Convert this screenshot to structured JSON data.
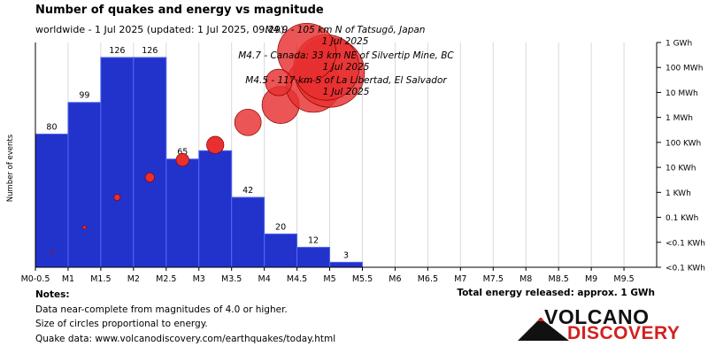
{
  "chart_data": {
    "type": "bar",
    "title": "Number of quakes and energy vs magnitude",
    "subtitle": "worldwide -  1 Jul 2025 (updated: 1 Jul 2025, 09:29)",
    "ylabel": "Number of events",
    "x_tick_labels": [
      "M0-0.5",
      "M1",
      "M1.5",
      "M2",
      "M2.5",
      "M3",
      "M3.5",
      "M4",
      "M4.5",
      "M5",
      "M5.5",
      "M6",
      "M6.5",
      "M7",
      "M7.5",
      "M8",
      "M8.5",
      "M9",
      "M9.5"
    ],
    "bins": [
      {
        "from": 0.0,
        "to": 0.5,
        "count": 80
      },
      {
        "from": 0.5,
        "to": 1.0,
        "count": 99
      },
      {
        "from": 1.0,
        "to": 1.5,
        "count": 126
      },
      {
        "from": 1.5,
        "to": 2.0,
        "count": 126
      },
      {
        "from": 2.0,
        "to": 2.5,
        "count": 65
      },
      {
        "from": 2.5,
        "to": 3.0,
        "count": 70
      },
      {
        "from": 3.0,
        "to": 3.5,
        "count": 42
      },
      {
        "from": 3.5,
        "to": 4.0,
        "count": 20
      },
      {
        "from": 4.0,
        "to": 4.5,
        "count": 12
      },
      {
        "from": 4.5,
        "to": 5.0,
        "count": 3
      }
    ],
    "ylim": [
      0,
      135
    ],
    "energy_axis_labels": [
      "1 GWh",
      "100 MWh",
      "10 MWh",
      "1 MWh",
      "100 KWh",
      "10 KWh",
      "1 KWh",
      "0.1 KWh",
      "<0.1 KWh",
      "<0.1 KWh"
    ],
    "energy_points": [
      {
        "magnitude": 0.25,
        "energy_level": 0.6
      },
      {
        "magnitude": 0.75,
        "energy_level": 1.6
      },
      {
        "magnitude": 1.25,
        "energy_level": 2.8
      },
      {
        "magnitude": 1.75,
        "energy_level": 3.6
      },
      {
        "magnitude": 2.25,
        "energy_level": 4.3
      },
      {
        "magnitude": 2.75,
        "energy_level": 4.9
      },
      {
        "magnitude": 3.25,
        "energy_level": 5.8
      },
      {
        "magnitude": 3.75,
        "energy_level": 6.5
      },
      {
        "magnitude": 4.25,
        "energy_level": 7.3
      },
      {
        "magnitude": 4.5,
        "energy_level": 7.8
      }
    ],
    "annotations": [
      {
        "line1": "M4.5 - 117 km S of La Libertad, El Salvador",
        "line2": "1 Jul 2025"
      },
      {
        "line1": "M4.7 - Canada: 33 km NE of Silvertip Mine, BC",
        "line2": "1 Jul 2025"
      },
      {
        "line1": "M4.9 - 105 km N of Tatsugō, Japan",
        "line2": "1 Jul 2025"
      }
    ],
    "bar_color": "#2233cc",
    "circle_color": "#e83030"
  },
  "notes": {
    "heading": "Notes:",
    "line1": "Data near-complete from magnitudes of 4.0 or higher.",
    "line2": "Size of circles proportional to energy.",
    "line3": "Quake data: www.volcanodiscovery.com/earthquakes/today.html"
  },
  "energy_total": "Total energy released: approx. 1 GWh",
  "logo": {
    "line1": "VOLCANO",
    "line2": "DISCOVERY"
  }
}
